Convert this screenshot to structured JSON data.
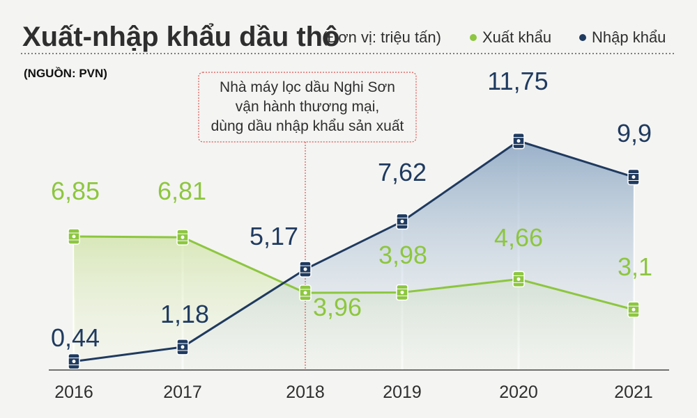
{
  "header": {
    "title": "Xuất-nhập khẩu dầu thô",
    "unit_label": "(Đơn vị: triệu tấn)",
    "source": "(NGUỒN: PVN)"
  },
  "annotation": {
    "lines": [
      "Nhà máy lọc dầu Nghi Sơn",
      "vận hành thương mại,",
      "dùng dầu nhập khẩu sản xuất"
    ],
    "at_x": "2018"
  },
  "colors": {
    "export": "#8dc63f",
    "import": "#1f3a5f",
    "note_border": "#d9534f"
  },
  "chart_data": {
    "type": "line",
    "x": [
      "2016",
      "2017",
      "2018",
      "2019",
      "2020",
      "2021"
    ],
    "series": [
      {
        "name": "Xuất khẩu",
        "values": [
          6.85,
          6.81,
          3.96,
          3.98,
          4.66,
          3.1
        ],
        "labels": [
          "6,85",
          "6,81",
          "3,96",
          "3,98",
          "4,66",
          "3,1"
        ]
      },
      {
        "name": "Nhập khẩu",
        "values": [
          0.44,
          1.18,
          5.17,
          7.62,
          11.75,
          9.9
        ],
        "labels": [
          "0,44",
          "1,18",
          "5,17",
          "7,62",
          "11,75",
          "9,9"
        ]
      }
    ],
    "ylim": [
      0,
      12
    ],
    "legend_position": "top-right",
    "marker": "oil-barrel-icon"
  }
}
